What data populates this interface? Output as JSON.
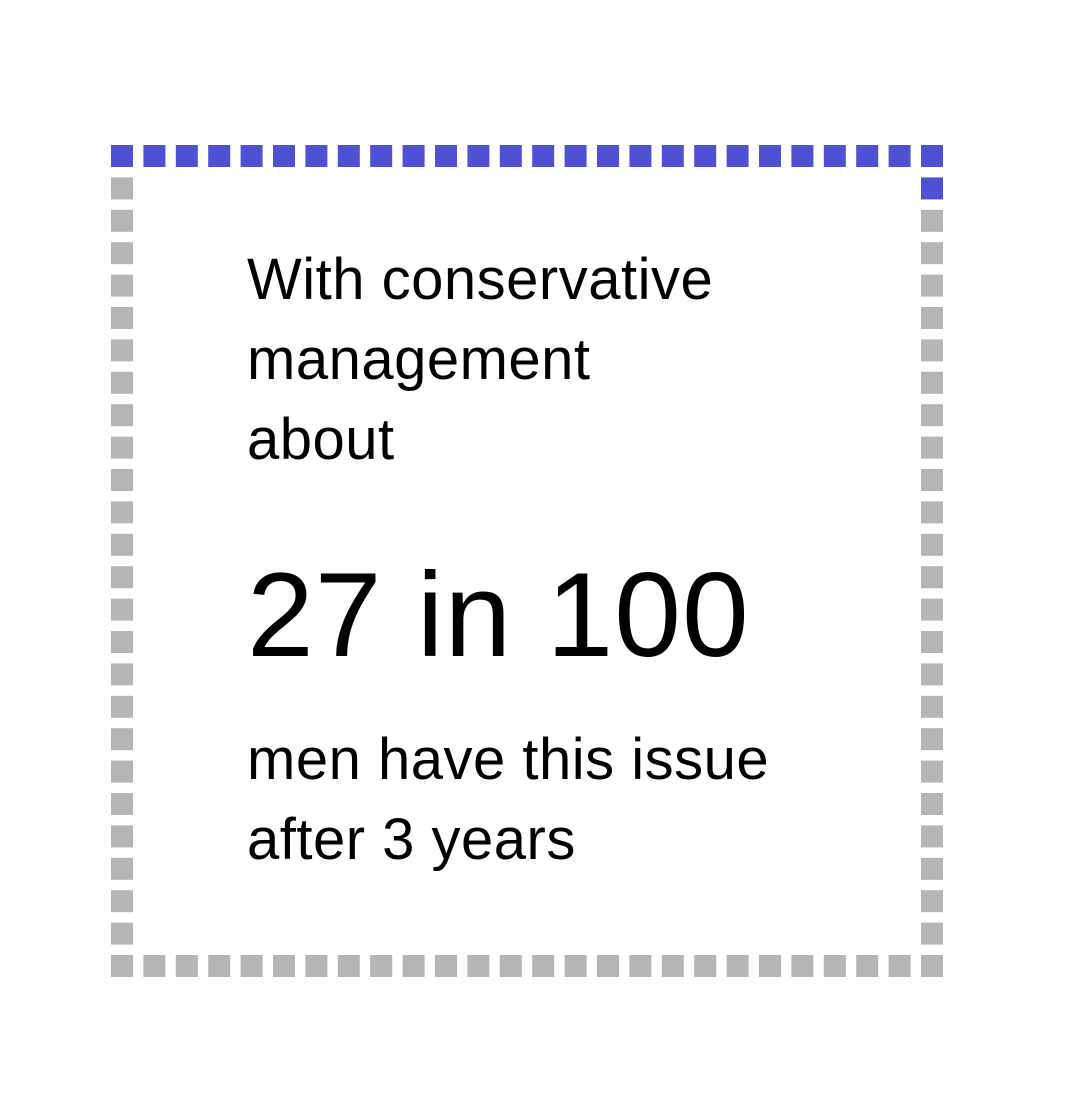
{
  "pictogram": {
    "total": 100,
    "highlighted": 27,
    "highlight_color": "#5050d4",
    "base_color": "#b5b5b5"
  },
  "text": {
    "intro_line1": "With conservative",
    "intro_line2": "management",
    "intro_line3": "about",
    "figure": "27 in 100",
    "outro_line1": "men have this issue",
    "outro_line2": "after 3 years"
  }
}
